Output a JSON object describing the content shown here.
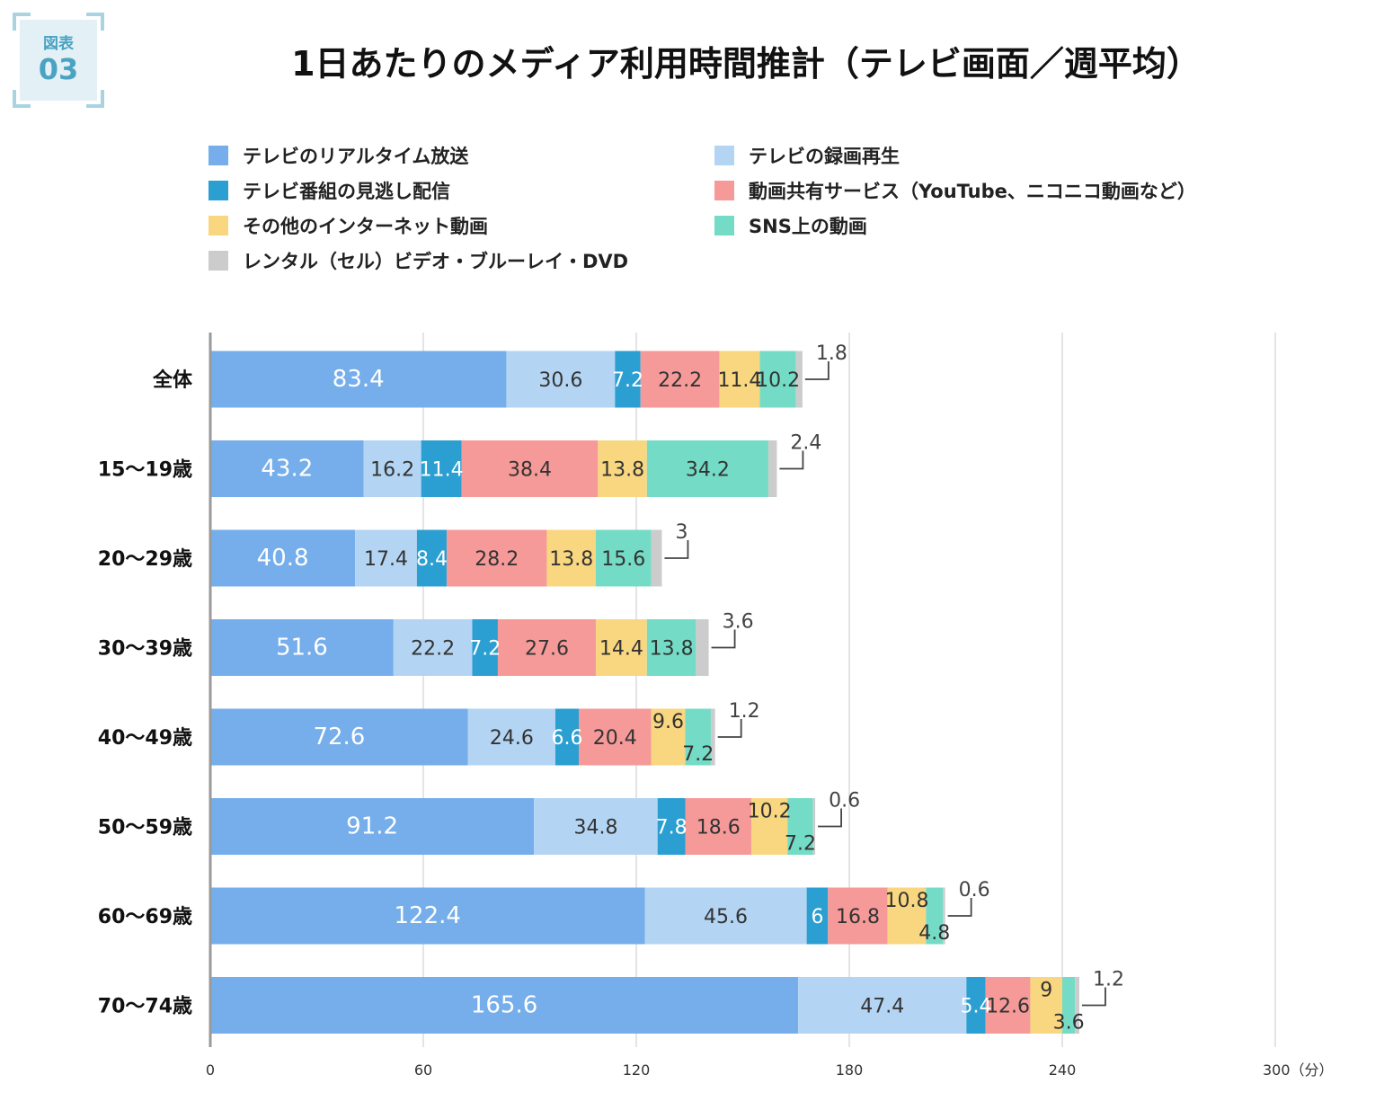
{
  "figure": {
    "badge_line1": "図表",
    "badge_line2": "03"
  },
  "title": "1日あたりのメディア利用時間推計（テレビ画面／週平均）",
  "chart_data": {
    "type": "bar",
    "orientation": "horizontal",
    "stacked": true,
    "categories": [
      "全体",
      "15〜19歳",
      "20〜29歳",
      "30〜39歳",
      "40〜49歳",
      "50〜59歳",
      "60〜69歳",
      "70〜74歳"
    ],
    "series": [
      {
        "name": "テレビのリアルタイム放送",
        "color": "#75aeea",
        "label_color": "#ffffff",
        "values": [
          83.4,
          43.2,
          40.8,
          51.6,
          72.6,
          91.2,
          122.4,
          165.6
        ]
      },
      {
        "name": "テレビの録画再生",
        "color": "#b3d5f3",
        "label_color": "#333333",
        "values": [
          30.6,
          16.2,
          17.4,
          22.2,
          24.6,
          34.8,
          45.6,
          47.4
        ]
      },
      {
        "name": "テレビ番組の見逃し配信",
        "color": "#2b9fd2",
        "label_color": "#ffffff",
        "values": [
          7.2,
          11.4,
          8.4,
          7.2,
          6.6,
          7.8,
          6,
          5.4
        ]
      },
      {
        "name": "動画共有サービス（YouTube、ニコニコ動画など）",
        "color": "#f59a98",
        "label_color": "#333333",
        "values": [
          22.2,
          38.4,
          28.2,
          27.6,
          20.4,
          18.6,
          16.8,
          12.6
        ]
      },
      {
        "name": "その他のインターネット動画",
        "color": "#f9d780",
        "label_color": "#333333",
        "values": [
          11.4,
          13.8,
          13.8,
          14.4,
          9.6,
          10.2,
          10.8,
          9
        ]
      },
      {
        "name": "SNS上の動画",
        "color": "#74dcc6",
        "label_color": "#333333",
        "values": [
          10.2,
          34.2,
          15.6,
          13.8,
          7.2,
          7.2,
          4.8,
          3.6
        ]
      },
      {
        "name": "レンタル（セル）ビデオ・ブルーレイ・DVD",
        "color": "#cccccc",
        "label_color": "#444444",
        "values": [
          1.8,
          2.4,
          3,
          3.6,
          1.2,
          0.6,
          0.6,
          1.2
        ]
      }
    ],
    "legend_order": [
      0,
      1,
      2,
      3,
      4,
      5,
      6
    ],
    "x_ticks": [
      "0",
      "60",
      "120",
      "180",
      "240",
      "300（分）"
    ],
    "xlim": [
      0,
      300
    ],
    "grid": "vertical",
    "legend_position": "top"
  }
}
